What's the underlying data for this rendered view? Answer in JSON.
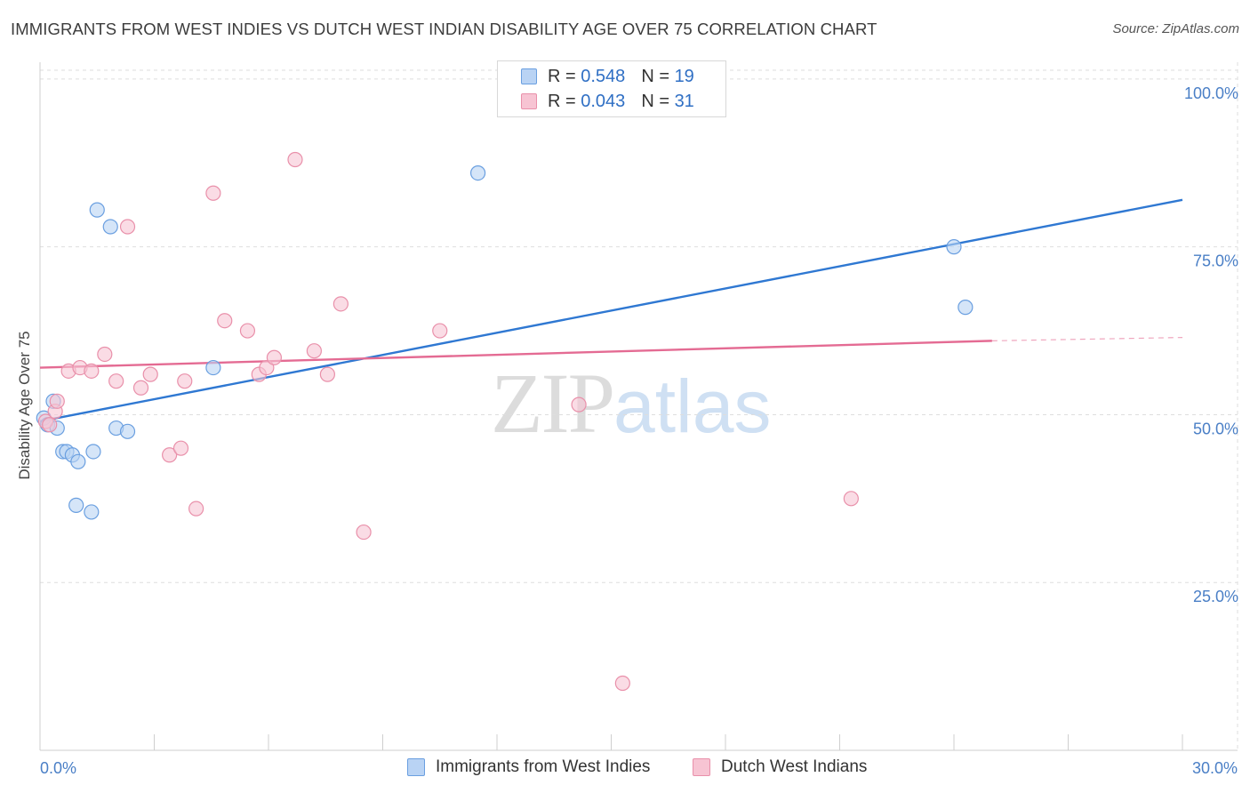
{
  "header": {
    "title": "IMMIGRANTS FROM WEST INDIES VS DUTCH WEST INDIAN DISABILITY AGE OVER 75 CORRELATION CHART",
    "source": "Source: ZipAtlas.com"
  },
  "watermark": {
    "zip": "ZIP",
    "atlas": "atlas"
  },
  "legend": {
    "r_label": "R =",
    "n_label": "N =",
    "rows": [
      {
        "r": "0.548",
        "n": "19"
      },
      {
        "r": "0.043",
        "n": "31"
      }
    ]
  },
  "colors": {
    "blue_fill": "#b9d3f4",
    "blue_stroke": "#6a9fe0",
    "blue_line": "#2f78d2",
    "pink_fill": "#f7c4d3",
    "pink_stroke": "#e990aa",
    "pink_line": "#e46b93",
    "tick_text": "#4a7fc6"
  },
  "chart_data": {
    "type": "scatter",
    "title": "IMMIGRANTS FROM WEST INDIES VS DUTCH WEST INDIAN DISABILITY AGE OVER 75 CORRELATION CHART",
    "xlabel": "",
    "ylabel": "Disability Age Over 75",
    "xlim": [
      0,
      30
    ],
    "ylim": [
      0,
      102.5
    ],
    "x_ticks": [
      0,
      30
    ],
    "x_tick_labels": [
      "0.0%",
      "30.0%"
    ],
    "y_ticks": [
      25,
      50,
      75,
      100
    ],
    "y_tick_labels": [
      "25.0%",
      "50.0%",
      "75.0%",
      "100.0%"
    ],
    "grid": true,
    "legend_position": "top-center",
    "series": [
      {
        "name": "Immigrants from West Indies",
        "r": 0.548,
        "n": 19,
        "points": [
          [
            0.1,
            49.5
          ],
          [
            0.2,
            48.5
          ],
          [
            0.35,
            52
          ],
          [
            0.45,
            48
          ],
          [
            0.6,
            44.5
          ],
          [
            0.7,
            44.5
          ],
          [
            0.85,
            44
          ],
          [
            1.0,
            43
          ],
          [
            1.4,
            44.5
          ],
          [
            0.95,
            36.5
          ],
          [
            1.35,
            35.5
          ],
          [
            2.0,
            48
          ],
          [
            2.3,
            47.5
          ],
          [
            1.5,
            80.5
          ],
          [
            1.85,
            78
          ],
          [
            4.55,
            57
          ],
          [
            11.5,
            86
          ],
          [
            24.0,
            75
          ],
          [
            24.3,
            66
          ]
        ],
        "trend": {
          "x": [
            0,
            30
          ],
          "y": [
            49,
            82
          ]
        }
      },
      {
        "name": "Dutch West Indians",
        "r": 0.043,
        "n": 31,
        "points": [
          [
            0.15,
            49
          ],
          [
            0.25,
            48.5
          ],
          [
            0.4,
            50.5
          ],
          [
            0.45,
            52
          ],
          [
            0.75,
            56.5
          ],
          [
            1.05,
            57
          ],
          [
            1.35,
            56.5
          ],
          [
            1.7,
            59
          ],
          [
            2.0,
            55
          ],
          [
            2.65,
            54
          ],
          [
            2.9,
            56
          ],
          [
            3.4,
            44
          ],
          [
            3.7,
            45
          ],
          [
            3.8,
            55
          ],
          [
            4.1,
            36
          ],
          [
            4.55,
            83
          ],
          [
            4.85,
            64
          ],
          [
            5.45,
            62.5
          ],
          [
            5.75,
            56
          ],
          [
            5.95,
            57
          ],
          [
            6.15,
            58.5
          ],
          [
            6.7,
            88
          ],
          [
            7.2,
            59.5
          ],
          [
            7.55,
            56
          ],
          [
            7.9,
            66.5
          ],
          [
            8.5,
            32.5
          ],
          [
            10.5,
            62.5
          ],
          [
            14.15,
            51.5
          ],
          [
            15.3,
            10
          ],
          [
            21.3,
            37.5
          ],
          [
            2.3,
            78
          ]
        ],
        "trend": {
          "x": [
            0,
            25
          ],
          "y": [
            57,
            61
          ]
        },
        "trend_dashed": {
          "x": [
            25,
            30
          ],
          "y": [
            61,
            61.5
          ]
        }
      }
    ]
  },
  "bottom_legend": [
    {
      "label": "Immigrants from West Indies"
    },
    {
      "label": "Dutch West Indians"
    }
  ]
}
